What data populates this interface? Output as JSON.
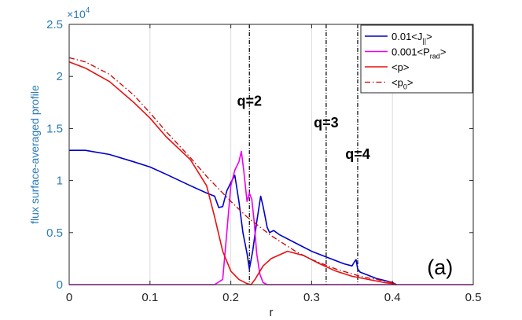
{
  "chart_data": {
    "type": "line",
    "title": "",
    "xlabel": "r",
    "ylabel": "flux surface-averaged profile",
    "y_exponent_label": "×10",
    "y_exponent_power": "4",
    "xlim": [
      0,
      0.5
    ],
    "ylim": [
      0,
      2.5
    ],
    "x_ticks": [
      "0",
      "0.1",
      "0.2",
      "0.3",
      "0.4",
      "0.5"
    ],
    "x_tick_values": [
      0,
      0.1,
      0.2,
      0.3,
      0.4,
      0.5
    ],
    "y_ticks": [
      "0",
      "0.5",
      "1",
      "1.5",
      "2",
      "2.5"
    ],
    "y_tick_values": [
      0,
      0.5,
      1,
      1.5,
      2,
      2.5
    ],
    "grid": "vertical lines",
    "legend_position": "top-right",
    "panel_label": "(a)",
    "vlines": [
      {
        "x": 0.223,
        "label": "q=2",
        "label_y": 1.72
      },
      {
        "x": 0.318,
        "label": "q=3",
        "label_y": 1.51
      },
      {
        "x": 0.357,
        "label": "q=4",
        "label_y": 1.21
      }
    ],
    "series": [
      {
        "legend": {
          "main": "0.01<J",
          "sub": "||",
          "end": ">"
        },
        "color": "#0000cc",
        "dash": "solid",
        "width": 1.6,
        "x": [
          0,
          0.02,
          0.05,
          0.08,
          0.1,
          0.12,
          0.15,
          0.17,
          0.18,
          0.185,
          0.19,
          0.195,
          0.2,
          0.205,
          0.21,
          0.215,
          0.22,
          0.223,
          0.227,
          0.232,
          0.237,
          0.24,
          0.245,
          0.248,
          0.253,
          0.26,
          0.28,
          0.3,
          0.32,
          0.34,
          0.35,
          0.353,
          0.355,
          0.357,
          0.36,
          0.37,
          0.38,
          0.39,
          0.4,
          0.405
        ],
        "y": [
          1.29,
          1.29,
          1.25,
          1.18,
          1.13,
          1.06,
          0.95,
          0.88,
          0.85,
          0.74,
          0.75,
          0.9,
          0.98,
          1.05,
          0.8,
          0.5,
          0.3,
          0.15,
          0.32,
          0.6,
          0.85,
          0.75,
          0.55,
          0.5,
          0.52,
          0.48,
          0.4,
          0.32,
          0.26,
          0.2,
          0.18,
          0.22,
          0.24,
          0.15,
          0.12,
          0.09,
          0.06,
          0.04,
          0.02,
          0.0
        ]
      },
      {
        "legend": {
          "main": "0.001<P",
          "sub": "rad",
          "end": ">"
        },
        "color": "#ee00ee",
        "dash": "solid",
        "width": 1.6,
        "x": [
          0,
          0.18,
          0.19,
          0.195,
          0.2,
          0.205,
          0.21,
          0.213,
          0.216,
          0.22,
          0.223,
          0.226,
          0.229,
          0.232,
          0.236,
          0.24,
          0.245,
          0.5
        ],
        "y": [
          0,
          0,
          0.05,
          0.5,
          0.95,
          1.1,
          1.18,
          1.28,
          1.1,
          0.8,
          0.88,
          0.82,
          0.6,
          0.3,
          0.1,
          0.02,
          0,
          0
        ]
      },
      {
        "legend": {
          "main": "<p>",
          "sub": "",
          "end": ""
        },
        "color": "#e81010",
        "dash": "solid",
        "width": 1.6,
        "x": [
          0,
          0.02,
          0.05,
          0.08,
          0.1,
          0.12,
          0.15,
          0.17,
          0.18,
          0.19,
          0.2,
          0.21,
          0.22,
          0.225,
          0.23,
          0.24,
          0.25,
          0.27,
          0.29,
          0.31,
          0.33,
          0.35,
          0.37,
          0.39,
          0.4,
          0.405
        ],
        "y": [
          2.14,
          2.08,
          1.95,
          1.75,
          1.6,
          1.42,
          1.2,
          0.95,
          0.65,
          0.32,
          0.13,
          0.05,
          0.01,
          0.0,
          0.05,
          0.18,
          0.25,
          0.32,
          0.28,
          0.2,
          0.13,
          0.08,
          0.05,
          0.02,
          0.01,
          0.0
        ]
      },
      {
        "legend": {
          "main": "<p",
          "sub": "0",
          "end": ">"
        },
        "color": "#cc0000",
        "dash": "dashdot",
        "width": 1.3,
        "x": [
          0,
          0.02,
          0.05,
          0.08,
          0.1,
          0.12,
          0.15,
          0.17,
          0.2,
          0.22,
          0.25,
          0.28,
          0.3,
          0.33,
          0.36,
          0.38,
          0.4,
          0.405
        ],
        "y": [
          2.18,
          2.14,
          2.02,
          1.82,
          1.65,
          1.47,
          1.22,
          1.04,
          0.8,
          0.65,
          0.47,
          0.32,
          0.24,
          0.15,
          0.08,
          0.05,
          0.02,
          0.0
        ]
      }
    ]
  }
}
